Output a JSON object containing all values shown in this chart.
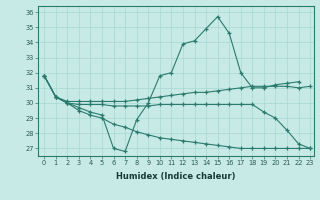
{
  "xlabel": "Humidex (Indice chaleur)",
  "background_color": "#c8eae6",
  "grid_color": "#a8d8d4",
  "line_color": "#2a7a6e",
  "xlim": [
    -0.5,
    23.3
  ],
  "ylim": [
    26.5,
    36.4
  ],
  "xticks": [
    0,
    1,
    2,
    3,
    4,
    5,
    6,
    7,
    8,
    9,
    10,
    11,
    12,
    13,
    14,
    15,
    16,
    17,
    18,
    19,
    20,
    21,
    22,
    23
  ],
  "yticks": [
    27,
    28,
    29,
    30,
    31,
    32,
    33,
    34,
    35,
    36
  ],
  "line1_x": [
    0,
    1,
    2,
    3,
    4,
    5,
    6,
    7,
    8,
    9,
    10,
    11,
    12,
    13,
    14,
    15,
    16,
    17,
    18,
    19,
    20,
    21,
    22
  ],
  "line1_y": [
    31.8,
    30.4,
    30.0,
    29.7,
    29.4,
    29.2,
    27.0,
    26.8,
    28.9,
    30.0,
    31.8,
    32.0,
    33.9,
    34.1,
    34.9,
    35.7,
    34.6,
    32.0,
    31.0,
    31.0,
    31.2,
    31.3,
    31.4
  ],
  "line2_x": [
    0,
    1,
    2,
    3,
    4,
    5,
    6,
    7,
    8,
    9,
    10,
    11,
    12,
    13,
    14,
    15,
    16,
    17,
    18,
    19,
    20,
    21,
    22,
    23
  ],
  "line2_y": [
    31.8,
    30.4,
    30.1,
    30.1,
    30.1,
    30.1,
    30.1,
    30.1,
    30.2,
    30.3,
    30.4,
    30.5,
    30.6,
    30.7,
    30.7,
    30.8,
    30.9,
    31.0,
    31.1,
    31.1,
    31.1,
    31.1,
    31.0,
    31.1
  ],
  "line3_x": [
    0,
    1,
    2,
    3,
    4,
    5,
    6,
    7,
    8,
    9,
    10,
    11,
    12,
    13,
    14,
    15,
    16,
    17,
    18,
    19,
    20,
    21,
    22,
    23
  ],
  "line3_y": [
    31.8,
    30.4,
    30.0,
    29.9,
    29.9,
    29.9,
    29.8,
    29.8,
    29.8,
    29.8,
    29.9,
    29.9,
    29.9,
    29.9,
    29.9,
    29.9,
    29.9,
    29.9,
    29.9,
    29.4,
    29.0,
    28.2,
    27.3,
    27.0
  ],
  "line4_x": [
    0,
    1,
    2,
    3,
    4,
    5,
    6,
    7,
    8,
    9,
    10,
    11,
    12,
    13,
    14,
    15,
    16,
    17,
    18,
    19,
    20,
    21,
    22,
    23
  ],
  "line4_y": [
    31.8,
    30.4,
    30.0,
    29.5,
    29.2,
    29.0,
    28.6,
    28.4,
    28.1,
    27.9,
    27.7,
    27.6,
    27.5,
    27.4,
    27.3,
    27.2,
    27.1,
    27.0,
    27.0,
    27.0,
    27.0,
    27.0,
    27.0,
    27.0
  ]
}
